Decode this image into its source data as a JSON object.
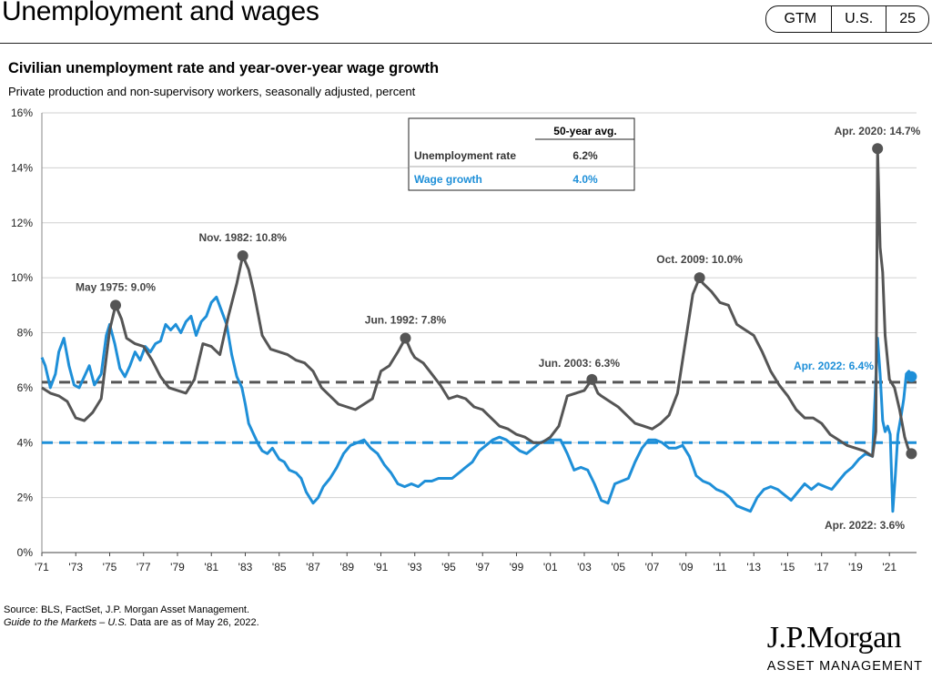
{
  "header": {
    "title": "Unemployment and wages",
    "badges": [
      "GTM",
      "U.S.",
      "25"
    ]
  },
  "chart_title": "Civilian unemployment rate and year-over-year wage growth",
  "chart_subtitle": "Private production and non-supervisory workers, seasonally adjusted, percent",
  "footer": {
    "source": "Source: BLS, FactSet, J.P. Morgan Asset Management.",
    "guide_italic": "Guide to the Markets – U.S.",
    "guide_rest": " Data are as of May 26, 2022."
  },
  "logo": {
    "name": "J.P.Morgan",
    "sub": "ASSET MANAGEMENT"
  },
  "colors": {
    "unemployment": "#555555",
    "wages": "#1e8fd8",
    "grid": "#d0d0d0"
  },
  "chart_data": {
    "type": "line",
    "ylim": [
      0,
      16
    ],
    "xlim": [
      1971,
      2022.6
    ],
    "yticks": [
      "0%",
      "2%",
      "4%",
      "6%",
      "8%",
      "10%",
      "12%",
      "14%",
      "16%"
    ],
    "xticks": [
      "'71",
      "'73",
      "'75",
      "'77",
      "'79",
      "'81",
      "'83",
      "'85",
      "'87",
      "'89",
      "'91",
      "'93",
      "'95",
      "'97",
      "'99",
      "'01",
      "'03",
      "'05",
      "'07",
      "'09",
      "'11",
      "'13",
      "'15",
      "'17",
      "'19",
      "'21"
    ],
    "table": {
      "header": "50-year avg.",
      "rows": [
        {
          "label": "Unemployment rate",
          "value": "6.2%"
        },
        {
          "label": "Wage growth",
          "value": "4.0%"
        }
      ]
    },
    "averages": {
      "unemployment": 6.2,
      "wages": 4.0
    },
    "annotations": [
      {
        "text": "May 1975: 9.0%",
        "x": 1975.35,
        "y": 9.0
      },
      {
        "text": "Nov. 1982: 10.8%",
        "x": 1982.85,
        "y": 10.8
      },
      {
        "text": "Jun. 1992: 7.8%",
        "x": 1992.45,
        "y": 7.8
      },
      {
        "text": "Jun. 2003: 6.3%",
        "x": 2003.45,
        "y": 6.3
      },
      {
        "text": "Oct. 2009: 10.0%",
        "x": 2009.8,
        "y": 10.0
      },
      {
        "text": "Apr. 2020: 14.7%",
        "x": 2020.3,
        "y": 14.7
      },
      {
        "text": "Apr. 2022: 6.4%",
        "x": 2022.3,
        "y": 6.4
      },
      {
        "text": "Apr. 2022: 3.6%",
        "x": 2022.3,
        "y": 3.6
      }
    ],
    "series": [
      {
        "name": "Unemployment rate",
        "points": [
          [
            1971,
            6.0
          ],
          [
            1971.5,
            5.8
          ],
          [
            1972,
            5.7
          ],
          [
            1972.5,
            5.5
          ],
          [
            1973,
            4.9
          ],
          [
            1973.5,
            4.8
          ],
          [
            1974,
            5.1
          ],
          [
            1974.5,
            5.6
          ],
          [
            1975,
            8.1
          ],
          [
            1975.35,
            9.0
          ],
          [
            1975.7,
            8.5
          ],
          [
            1976,
            7.8
          ],
          [
            1976.5,
            7.6
          ],
          [
            1977,
            7.5
          ],
          [
            1977.5,
            7.0
          ],
          [
            1978,
            6.4
          ],
          [
            1978.5,
            6.0
          ],
          [
            1979,
            5.9
          ],
          [
            1979.5,
            5.8
          ],
          [
            1980,
            6.3
          ],
          [
            1980.5,
            7.6
          ],
          [
            1981,
            7.5
          ],
          [
            1981.5,
            7.2
          ],
          [
            1982,
            8.6
          ],
          [
            1982.5,
            9.8
          ],
          [
            1982.85,
            10.8
          ],
          [
            1983.2,
            10.3
          ],
          [
            1983.5,
            9.5
          ],
          [
            1984,
            7.9
          ],
          [
            1984.5,
            7.4
          ],
          [
            1985,
            7.3
          ],
          [
            1985.5,
            7.2
          ],
          [
            1986,
            7.0
          ],
          [
            1986.5,
            6.9
          ],
          [
            1987,
            6.6
          ],
          [
            1987.5,
            6.0
          ],
          [
            1988,
            5.7
          ],
          [
            1988.5,
            5.4
          ],
          [
            1989,
            5.3
          ],
          [
            1989.5,
            5.2
          ],
          [
            1990,
            5.4
          ],
          [
            1990.5,
            5.6
          ],
          [
            1991,
            6.6
          ],
          [
            1991.5,
            6.8
          ],
          [
            1992,
            7.3
          ],
          [
            1992.45,
            7.8
          ],
          [
            1992.8,
            7.3
          ],
          [
            1993,
            7.1
          ],
          [
            1993.5,
            6.9
          ],
          [
            1994,
            6.5
          ],
          [
            1994.5,
            6.1
          ],
          [
            1995,
            5.6
          ],
          [
            1995.5,
            5.7
          ],
          [
            1996,
            5.6
          ],
          [
            1996.5,
            5.3
          ],
          [
            1997,
            5.2
          ],
          [
            1997.5,
            4.9
          ],
          [
            1998,
            4.6
          ],
          [
            1998.5,
            4.5
          ],
          [
            1999,
            4.3
          ],
          [
            1999.5,
            4.2
          ],
          [
            2000,
            4.0
          ],
          [
            2000.5,
            4.0
          ],
          [
            2001,
            4.2
          ],
          [
            2001.5,
            4.6
          ],
          [
            2002,
            5.7
          ],
          [
            2002.5,
            5.8
          ],
          [
            2003,
            5.9
          ],
          [
            2003.45,
            6.3
          ],
          [
            2003.8,
            5.8
          ],
          [
            2004,
            5.7
          ],
          [
            2004.5,
            5.5
          ],
          [
            2005,
            5.3
          ],
          [
            2005.5,
            5.0
          ],
          [
            2006,
            4.7
          ],
          [
            2006.5,
            4.6
          ],
          [
            2007,
            4.5
          ],
          [
            2007.5,
            4.7
          ],
          [
            2008,
            5.0
          ],
          [
            2008.5,
            5.8
          ],
          [
            2009,
            7.8
          ],
          [
            2009.4,
            9.4
          ],
          [
            2009.8,
            10.0
          ],
          [
            2010,
            9.8
          ],
          [
            2010.5,
            9.5
          ],
          [
            2011,
            9.1
          ],
          [
            2011.5,
            9.0
          ],
          [
            2012,
            8.3
          ],
          [
            2012.5,
            8.1
          ],
          [
            2013,
            7.9
          ],
          [
            2013.5,
            7.3
          ],
          [
            2014,
            6.6
          ],
          [
            2014.5,
            6.1
          ],
          [
            2015,
            5.7
          ],
          [
            2015.5,
            5.2
          ],
          [
            2016,
            4.9
          ],
          [
            2016.5,
            4.9
          ],
          [
            2017,
            4.7
          ],
          [
            2017.5,
            4.3
          ],
          [
            2018,
            4.1
          ],
          [
            2018.5,
            3.9
          ],
          [
            2019,
            3.8
          ],
          [
            2019.5,
            3.7
          ],
          [
            2020,
            3.5
          ],
          [
            2020.2,
            4.4
          ],
          [
            2020.3,
            14.7
          ],
          [
            2020.45,
            11.1
          ],
          [
            2020.6,
            10.2
          ],
          [
            2020.75,
            7.9
          ],
          [
            2021,
            6.3
          ],
          [
            2021.3,
            6.0
          ],
          [
            2021.6,
            5.2
          ],
          [
            2021.9,
            4.2
          ],
          [
            2022.1,
            3.8
          ],
          [
            2022.3,
            3.6
          ]
        ]
      },
      {
        "name": "Wage growth",
        "points": [
          [
            1971,
            7.1
          ],
          [
            1971.2,
            6.8
          ],
          [
            1971.5,
            6.0
          ],
          [
            1971.8,
            6.5
          ],
          [
            1972,
            7.3
          ],
          [
            1972.3,
            7.8
          ],
          [
            1972.6,
            6.8
          ],
          [
            1972.9,
            6.1
          ],
          [
            1973.2,
            6.0
          ],
          [
            1973.5,
            6.4
          ],
          [
            1973.8,
            6.8
          ],
          [
            1974.1,
            6.1
          ],
          [
            1974.5,
            6.5
          ],
          [
            1974.8,
            7.9
          ],
          [
            1975.0,
            8.3
          ],
          [
            1975.3,
            7.6
          ],
          [
            1975.6,
            6.7
          ],
          [
            1975.9,
            6.4
          ],
          [
            1976.2,
            6.8
          ],
          [
            1976.5,
            7.3
          ],
          [
            1976.8,
            7.0
          ],
          [
            1977.1,
            7.5
          ],
          [
            1977.4,
            7.3
          ],
          [
            1977.7,
            7.6
          ],
          [
            1978,
            7.7
          ],
          [
            1978.3,
            8.3
          ],
          [
            1978.6,
            8.1
          ],
          [
            1978.9,
            8.3
          ],
          [
            1979.2,
            8.0
          ],
          [
            1979.5,
            8.4
          ],
          [
            1979.8,
            8.6
          ],
          [
            1980.1,
            7.9
          ],
          [
            1980.4,
            8.4
          ],
          [
            1980.7,
            8.6
          ],
          [
            1981,
            9.1
          ],
          [
            1981.3,
            9.3
          ],
          [
            1981.6,
            8.8
          ],
          [
            1981.9,
            8.3
          ],
          [
            1982.2,
            7.2
          ],
          [
            1982.5,
            6.4
          ],
          [
            1982.8,
            6.0
          ],
          [
            1983,
            5.4
          ],
          [
            1983.2,
            4.7
          ],
          [
            1983.5,
            4.3
          ],
          [
            1983.8,
            3.9
          ],
          [
            1984,
            3.7
          ],
          [
            1984.3,
            3.6
          ],
          [
            1984.6,
            3.8
          ],
          [
            1985,
            3.4
          ],
          [
            1985.3,
            3.3
          ],
          [
            1985.6,
            3.0
          ],
          [
            1986,
            2.9
          ],
          [
            1986.3,
            2.7
          ],
          [
            1986.6,
            2.2
          ],
          [
            1987,
            1.8
          ],
          [
            1987.3,
            2.0
          ],
          [
            1987.6,
            2.4
          ],
          [
            1988,
            2.7
          ],
          [
            1988.4,
            3.1
          ],
          [
            1988.8,
            3.6
          ],
          [
            1989.2,
            3.9
          ],
          [
            1989.6,
            4.0
          ],
          [
            1990,
            4.1
          ],
          [
            1990.4,
            3.8
          ],
          [
            1990.8,
            3.6
          ],
          [
            1991.2,
            3.2
          ],
          [
            1991.6,
            2.9
          ],
          [
            1992,
            2.5
          ],
          [
            1992.4,
            2.4
          ],
          [
            1992.8,
            2.5
          ],
          [
            1993.2,
            2.4
          ],
          [
            1993.6,
            2.6
          ],
          [
            1994,
            2.6
          ],
          [
            1994.4,
            2.7
          ],
          [
            1994.8,
            2.7
          ],
          [
            1995.2,
            2.7
          ],
          [
            1995.6,
            2.9
          ],
          [
            1996,
            3.1
          ],
          [
            1996.4,
            3.3
          ],
          [
            1996.8,
            3.7
          ],
          [
            1997.2,
            3.9
          ],
          [
            1997.6,
            4.1
          ],
          [
            1998,
            4.2
          ],
          [
            1998.4,
            4.1
          ],
          [
            1998.8,
            3.9
          ],
          [
            1999.2,
            3.7
          ],
          [
            1999.6,
            3.6
          ],
          [
            2000,
            3.8
          ],
          [
            2000.4,
            4.0
          ],
          [
            2000.8,
            4.1
          ],
          [
            2001.2,
            4.1
          ],
          [
            2001.6,
            4.1
          ],
          [
            2002,
            3.6
          ],
          [
            2002.4,
            3.0
          ],
          [
            2002.8,
            3.1
          ],
          [
            2003.2,
            3.0
          ],
          [
            2003.6,
            2.5
          ],
          [
            2004,
            1.9
          ],
          [
            2004.4,
            1.8
          ],
          [
            2004.8,
            2.5
          ],
          [
            2005.2,
            2.6
          ],
          [
            2005.6,
            2.7
          ],
          [
            2006,
            3.3
          ],
          [
            2006.4,
            3.8
          ],
          [
            2006.8,
            4.1
          ],
          [
            2007.2,
            4.1
          ],
          [
            2007.6,
            4.0
          ],
          [
            2008,
            3.8
          ],
          [
            2008.4,
            3.8
          ],
          [
            2008.8,
            3.9
          ],
          [
            2009.2,
            3.5
          ],
          [
            2009.6,
            2.8
          ],
          [
            2010,
            2.6
          ],
          [
            2010.4,
            2.5
          ],
          [
            2010.8,
            2.3
          ],
          [
            2011.2,
            2.2
          ],
          [
            2011.6,
            2.0
          ],
          [
            2012,
            1.7
          ],
          [
            2012.4,
            1.6
          ],
          [
            2012.8,
            1.5
          ],
          [
            2013.2,
            2.0
          ],
          [
            2013.6,
            2.3
          ],
          [
            2014,
            2.4
          ],
          [
            2014.4,
            2.3
          ],
          [
            2014.8,
            2.1
          ],
          [
            2015.2,
            1.9
          ],
          [
            2015.6,
            2.2
          ],
          [
            2016,
            2.5
          ],
          [
            2016.4,
            2.3
          ],
          [
            2016.8,
            2.5
          ],
          [
            2017.2,
            2.4
          ],
          [
            2017.6,
            2.3
          ],
          [
            2018,
            2.6
          ],
          [
            2018.4,
            2.9
          ],
          [
            2018.8,
            3.1
          ],
          [
            2019.2,
            3.4
          ],
          [
            2019.6,
            3.6
          ],
          [
            2020,
            3.5
          ],
          [
            2020.3,
            7.8
          ],
          [
            2020.45,
            6.5
          ],
          [
            2020.6,
            4.8
          ],
          [
            2020.75,
            4.4
          ],
          [
            2020.9,
            4.6
          ],
          [
            2021.05,
            4.3
          ],
          [
            2021.2,
            1.5
          ],
          [
            2021.35,
            2.8
          ],
          [
            2021.5,
            4.3
          ],
          [
            2021.7,
            5.0
          ],
          [
            2021.85,
            5.6
          ],
          [
            2022.0,
            6.5
          ],
          [
            2022.15,
            6.6
          ],
          [
            2022.3,
            6.4
          ]
        ]
      }
    ]
  }
}
